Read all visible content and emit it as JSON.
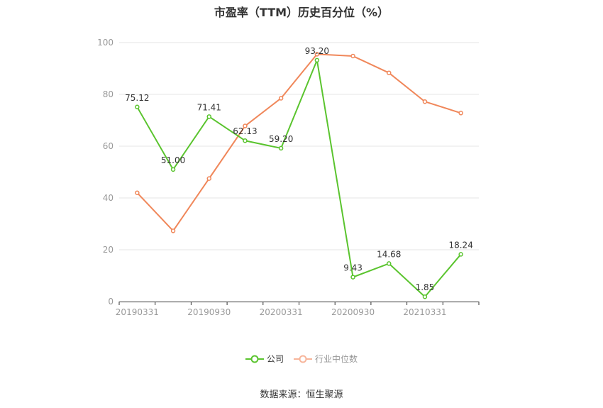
{
  "chart_data": {
    "type": "line",
    "title": "市盈率（TTM）历史百分位（%）",
    "x": [
      "20190331",
      "20190630",
      "20190930",
      "20191231",
      "20200331",
      "20200630",
      "20200930",
      "20201231",
      "20210331",
      "20210630"
    ],
    "x_tick_labels": [
      "20190331",
      "20190930",
      "20200331",
      "20200930",
      "20210331"
    ],
    "y_ticks": [
      "0",
      "20",
      "40",
      "60",
      "80",
      "100"
    ],
    "ylim": [
      0,
      100
    ],
    "grid": true,
    "legend_position": "bottom",
    "series": [
      {
        "name": "公司",
        "color": "#5ac42e",
        "values": [
          75.12,
          51.0,
          71.41,
          62.13,
          59.2,
          93.2,
          9.43,
          14.68,
          1.85,
          18.24
        ],
        "labels": [
          "75.12",
          "51.00",
          "71.41",
          "62.13",
          "59.20",
          "93.20",
          "9.43",
          "14.68",
          "1.85",
          "18.24"
        ]
      },
      {
        "name": "行业中位数",
        "color": "#f0875a",
        "values": [
          42,
          27.3,
          47.5,
          67.8,
          78.5,
          95.5,
          94.8,
          88.3,
          77.2,
          72.8
        ]
      }
    ],
    "source": "数据来源：恒生聚源"
  }
}
